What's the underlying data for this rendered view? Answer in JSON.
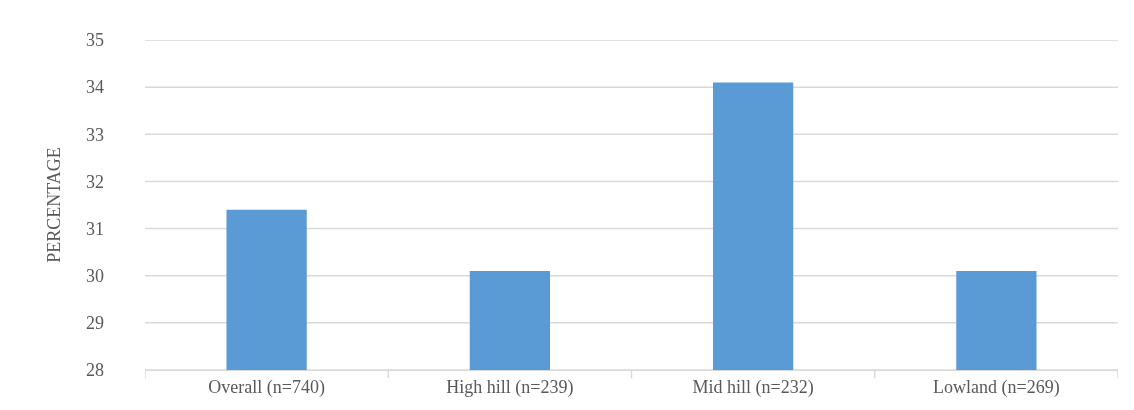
{
  "chart_data": {
    "type": "bar",
    "ylabel": "PERCENTAGE",
    "categories": [
      "Overall (n=740)",
      "High hill (n=239)",
      "Mid hill (n=232)",
      "Lowland (n=269)"
    ],
    "values": [
      31.4,
      30.1,
      34.1,
      30.1
    ],
    "color": "#5b9bd5",
    "ylim": [
      28,
      35
    ],
    "yticks": [
      28,
      29,
      30,
      31,
      32,
      33,
      34,
      35
    ],
    "grid": "y"
  }
}
